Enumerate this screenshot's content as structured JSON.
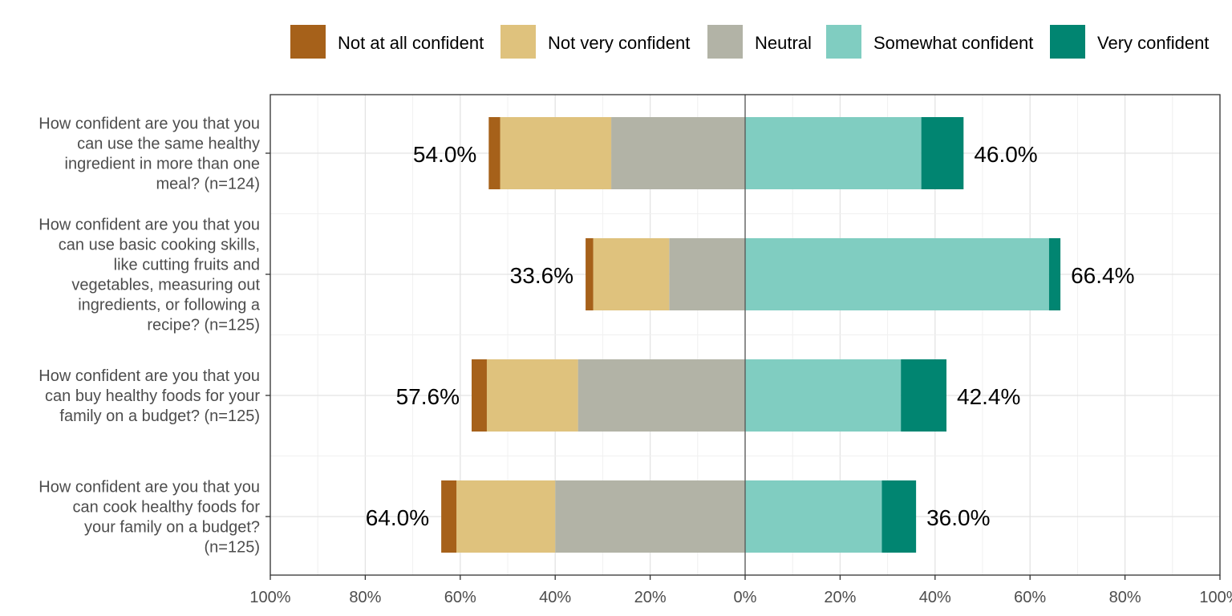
{
  "chart_data": {
    "type": "bar",
    "orientation": "horizontal",
    "stacking": "diverging",
    "categories": [
      "How confident are you that you can use the same healthy ingredient in more than one meal? (n=124)",
      "How confident are you that you can use basic cooking skills, like cutting fruits and vegetables, measuring out ingredients, or following a recipe? (n=125)",
      "How confident are you that you can buy healthy foods for your family on a budget? (n=125)",
      "How confident are you that you can cook healthy foods for your family on a budget? (n=125)"
    ],
    "category_lines": [
      [
        "How confident are you that you",
        "can use the same healthy",
        "ingredient in more than one",
        "meal? (n=124)"
      ],
      [
        "How confident are you that you",
        "can use basic cooking skills,",
        "like cutting fruits and",
        "vegetables, measuring out",
        "ingredients, or following a",
        "recipe? (n=125)"
      ],
      [
        "How confident are you that you",
        "can buy healthy foods for your",
        "family on a budget? (n=125)"
      ],
      [
        "How confident are you that you",
        "can cook healthy foods for",
        "your family on a budget?",
        "(n=125)"
      ]
    ],
    "series": [
      {
        "name": "Not at all confident",
        "color": "#a6611a",
        "side": "negative",
        "values": [
          2.4,
          1.6,
          3.2,
          3.2
        ]
      },
      {
        "name": "Not very confident",
        "color": "#dfc27d",
        "side": "negative",
        "values": [
          23.4,
          16.0,
          19.2,
          20.8
        ]
      },
      {
        "name": "Neutral",
        "color": "#b2b3a6",
        "side": "negative",
        "values": [
          28.2,
          16.0,
          35.2,
          40.0
        ]
      },
      {
        "name": "Somewhat confident",
        "color": "#80cdc1",
        "side": "positive",
        "values": [
          37.1,
          64.0,
          32.8,
          28.8
        ]
      },
      {
        "name": "Very confident",
        "color": "#018571",
        "side": "positive",
        "values": [
          8.9,
          2.4,
          9.6,
          7.2
        ]
      }
    ],
    "left_totals": [
      "54.0%",
      "33.6%",
      "57.6%",
      "64.0%"
    ],
    "right_totals": [
      "46.0%",
      "66.4%",
      "42.4%",
      "36.0%"
    ],
    "xlim": [
      -100,
      100
    ],
    "xticks": [
      -100,
      -80,
      -60,
      -40,
      -20,
      0,
      20,
      40,
      60,
      80,
      100
    ],
    "xtick_labels": [
      "100%",
      "80%",
      "60%",
      "40%",
      "20%",
      "0%",
      "20%",
      "40%",
      "60%",
      "80%",
      "100%"
    ],
    "grid": true,
    "legend_position": "top"
  }
}
